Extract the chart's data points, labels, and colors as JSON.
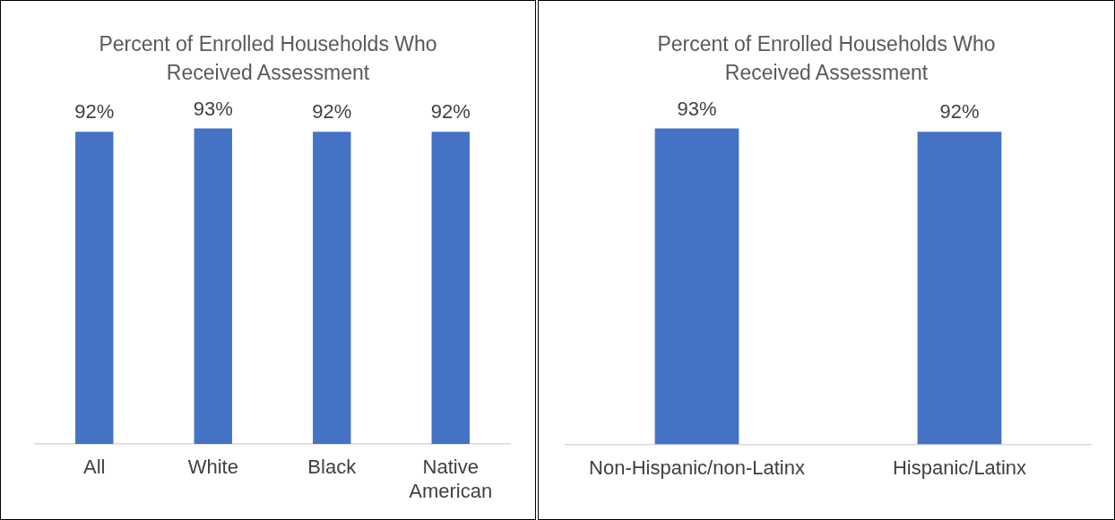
{
  "chart_data": [
    {
      "type": "bar",
      "title": "Percent of Enrolled Households Who Received Assessment",
      "categories": [
        "All",
        "White",
        "Black",
        "Native American"
      ],
      "values": [
        92,
        93,
        92,
        92
      ],
      "color": "#4472c4",
      "data_labels": true,
      "value_labels": [
        "92%",
        "93%",
        "92%",
        "92%"
      ],
      "grid": false,
      "legend": false
    },
    {
      "type": "bar",
      "title": "Percent of Enrolled Households Who Received Assessment",
      "categories": [
        "Non-Hispanic/non-Latinx",
        "Hispanic/Latinx"
      ],
      "values": [
        93,
        92
      ],
      "color": "#4472c4",
      "data_labels": true,
      "value_labels": [
        "93%",
        "92%"
      ],
      "grid": false,
      "legend": false
    }
  ]
}
